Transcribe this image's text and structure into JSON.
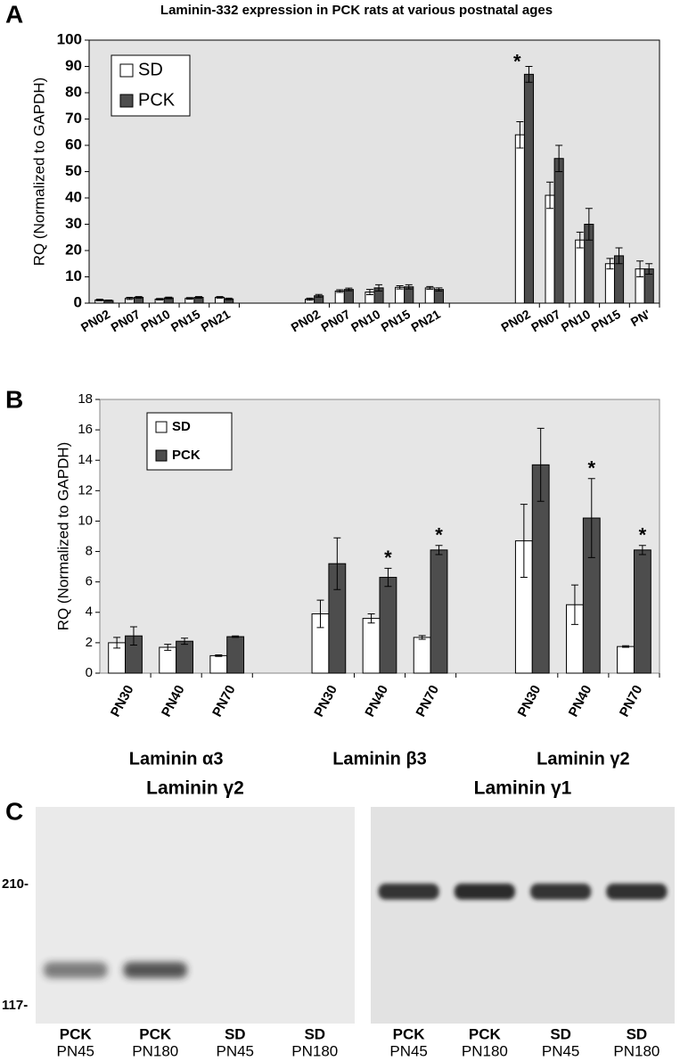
{
  "chart_data": [
    {
      "type": "bar",
      "panel": "A",
      "title": "Laminin-332 expression in PCK rats at various postnatal ages",
      "y_label": "RQ (Normalized to GAPDH)",
      "categories": [
        "PN02",
        "PN07",
        "PN10",
        "PN15",
        "PN21",
        null,
        null,
        "PN02",
        "PN07",
        "PN10",
        "PN15",
        "PN21",
        null,
        null,
        "PN02",
        "PN07",
        "PN10",
        "PN15",
        "PN'"
      ],
      "series": [
        {
          "name": "SD",
          "color": "#ffffff",
          "values": [
            1.2,
            1.8,
            1.5,
            1.8,
            2.2,
            null,
            null,
            1.5,
            4.6,
            4.2,
            6.0,
            5.8,
            null,
            null,
            64,
            41,
            24,
            15,
            13
          ],
          "errors": [
            0.3,
            0.4,
            0.3,
            0.3,
            0.3,
            null,
            null,
            0.4,
            0.5,
            1.0,
            0.6,
            0.5,
            null,
            null,
            5,
            5,
            3,
            2,
            3
          ]
        },
        {
          "name": "PCK",
          "color": "#4d4d4d",
          "values": [
            1.0,
            2.2,
            2.0,
            2.2,
            1.6,
            null,
            null,
            2.8,
            5.2,
            5.8,
            6.2,
            5.2,
            null,
            null,
            87,
            55,
            30,
            18,
            13
          ],
          "errors": [
            0.2,
            0.3,
            0.3,
            0.3,
            0.3,
            null,
            null,
            0.5,
            0.5,
            1.2,
            0.8,
            0.6,
            null,
            null,
            3,
            5,
            6,
            3,
            2
          ]
        }
      ],
      "ylim": [
        0,
        100
      ],
      "yticks": [
        0,
        10,
        20,
        30,
        40,
        50,
        60,
        70,
        80,
        90,
        100
      ],
      "annotations": [
        {
          "text": "*",
          "series": 1,
          "index": 14
        }
      ]
    },
    {
      "type": "bar",
      "panel": "B",
      "y_label": "RQ (Normalized to GAPDH)",
      "categories": [
        "PN30",
        "PN40",
        "PN70",
        null,
        "PN30",
        "PN40",
        "PN70",
        null,
        "PN30",
        "PN40",
        "PN70"
      ],
      "group_labels": [
        "Laminin α3",
        "Laminin β3",
        "Laminin γ2"
      ],
      "series": [
        {
          "name": "SD",
          "color": "#ffffff",
          "values": [
            2.0,
            1.7,
            1.15,
            null,
            3.9,
            3.6,
            2.35,
            null,
            8.7,
            4.5,
            1.75
          ],
          "errors": [
            0.35,
            0.2,
            0.05,
            null,
            0.9,
            0.3,
            0.12,
            null,
            2.4,
            1.3,
            0.05
          ]
        },
        {
          "name": "PCK",
          "color": "#4d4d4d",
          "values": [
            2.45,
            2.1,
            2.4,
            null,
            7.2,
            6.3,
            8.1,
            null,
            13.7,
            10.2,
            8.1
          ],
          "errors": [
            0.6,
            0.2,
            0.05,
            null,
            1.7,
            0.6,
            0.3,
            null,
            2.4,
            2.6,
            0.3
          ]
        }
      ],
      "ylim": [
        0,
        18
      ],
      "yticks": [
        0,
        2,
        4,
        6,
        8,
        10,
        12,
        14,
        16,
        18
      ],
      "annotations": [
        {
          "text": "*",
          "series": 1,
          "index": 5
        },
        {
          "text": "*",
          "series": 1,
          "index": 6
        },
        {
          "text": "*",
          "series": 1,
          "index": 9
        },
        {
          "text": "*",
          "series": 1,
          "index": 10
        }
      ]
    }
  ],
  "panel_c": {
    "label": "C",
    "markers": [
      "210-",
      "117-"
    ],
    "blots": [
      {
        "title": "Laminin γ2",
        "lanes": [
          {
            "name": "PCK",
            "age": "PN45"
          },
          {
            "name": "PCK",
            "age": "PN180"
          },
          {
            "name": "SD",
            "age": "PN45"
          },
          {
            "name": "SD",
            "age": "PN180"
          }
        ]
      },
      {
        "title": "Laminin γ1",
        "lanes": [
          {
            "name": "PCK",
            "age": "PN45"
          },
          {
            "name": "PCK",
            "age": "PN180"
          },
          {
            "name": "SD",
            "age": "PN45"
          },
          {
            "name": "SD",
            "age": "PN180"
          }
        ]
      }
    ]
  }
}
